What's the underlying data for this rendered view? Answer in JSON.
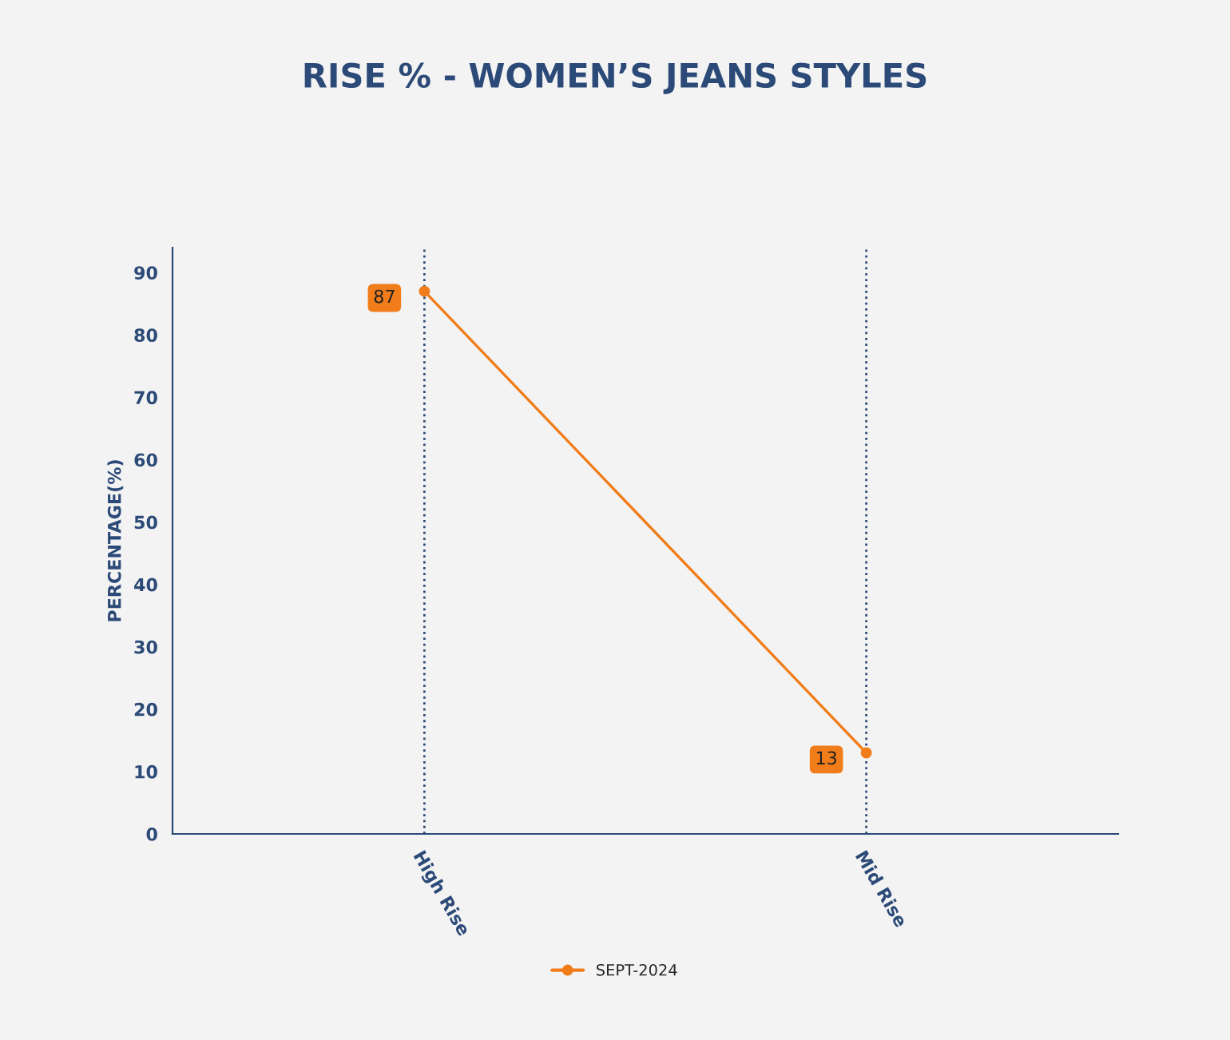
{
  "chart_data": {
    "type": "line",
    "title": "RISE % - WOMEN’S JEANS STYLES",
    "ylabel": "PERCENTAGE(%)",
    "categories": [
      "High Rise",
      "Mid Rise"
    ],
    "series": [
      {
        "name": "SEPT-2024",
        "color": "#f07d1a",
        "values": [
          87,
          13
        ]
      }
    ],
    "ylim": [
      0,
      94
    ],
    "yticks": [
      0,
      10,
      20,
      30,
      40,
      50,
      60,
      70,
      80,
      90
    ],
    "grid": "x",
    "legend": "bottom",
    "marker": "circle",
    "line_style": "solid",
    "data_labels": true
  }
}
